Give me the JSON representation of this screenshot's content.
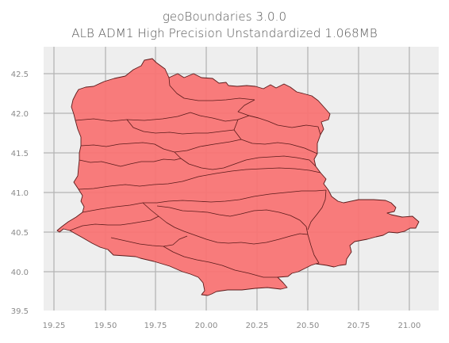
{
  "title": {
    "line1": "geoBoundaries 3.0.0",
    "line2": "ALB ADM1 High Precision Unstandardized 1.068MB"
  },
  "map": {
    "country": "ALB",
    "admin_level": "ADM1",
    "fill_color": "#f87474",
    "edge_color": "#5a1a1a",
    "background_color": "#eeeeee",
    "grid_color": "#b5b5b5",
    "grid": true,
    "xlim": [
      19.2,
      21.15
    ],
    "ylim": [
      39.5,
      42.8
    ],
    "x_ticks": [
      "19.25",
      "19.50",
      "19.75",
      "20.00",
      "20.25",
      "20.50",
      "20.75",
      "21.00"
    ],
    "y_ticks": [
      "42.5",
      "42.0",
      "41.5",
      "41.0",
      "40.5",
      "40.0",
      "39.5"
    ]
  }
}
